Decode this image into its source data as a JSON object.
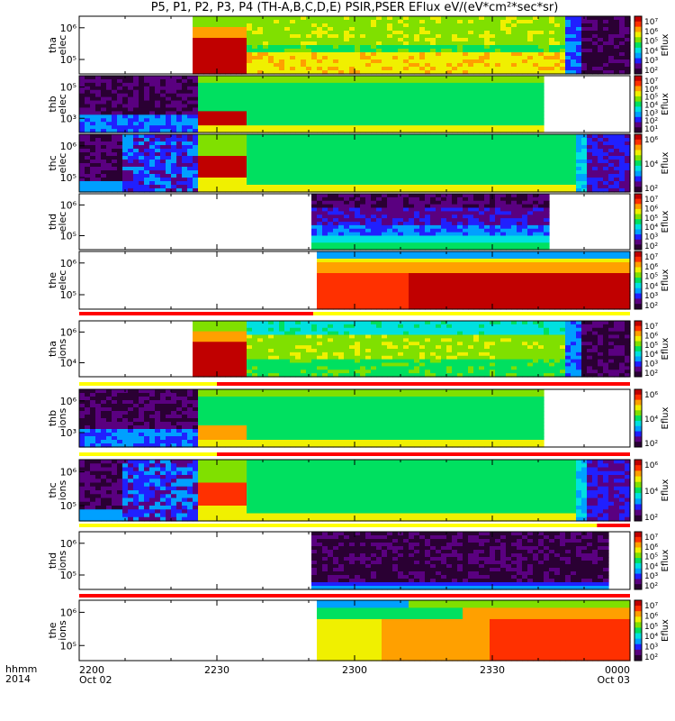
{
  "title": "P5, P1, P2, P3, P4 (TH-A,B,C,D,E) PSIR,PSER EFlux eV/(eV*cm²*sec*sr)",
  "time_axis": {
    "row_label": "hhmm",
    "year": "2014",
    "ticks": [
      {
        "label": "2200",
        "sublabel": "Oct 02"
      },
      {
        "label": "2230",
        "sublabel": ""
      },
      {
        "label": "2300",
        "sublabel": ""
      },
      {
        "label": "2330",
        "sublabel": ""
      },
      {
        "label": "0000",
        "sublabel": "Oct 03"
      }
    ]
  },
  "colors": {
    "colormap": [
      "#2a0033",
      "#5a0080",
      "#2020ff",
      "#00a0ff",
      "#00e0e0",
      "#00e060",
      "#80e000",
      "#f0f000",
      "#ffa000",
      "#ff3000",
      "#c00000"
    ],
    "flag_red": "#ff0000",
    "flag_yellow": "#ffff00"
  },
  "chart_data": [
    {
      "type": "heatmap",
      "panel": "tha elec",
      "ylabel": "tha\nelec",
      "yticks": [
        "10⁶",
        "10⁵"
      ],
      "colorbar": {
        "label": "Eflux",
        "ticks": [
          "10⁷",
          "10⁶",
          "10⁵",
          "10⁴",
          "10³",
          "10²"
        ]
      },
      "x_range": [
        "2200",
        "0000"
      ],
      "data_segments": [
        [
          "2225",
          "2237",
          "high"
        ],
        [
          "2237",
          "2346",
          "medium"
        ],
        [
          "2346",
          "0000",
          "low"
        ]
      ]
    },
    {
      "type": "heatmap",
      "panel": "thb elec",
      "ylabel": "thb\nelec",
      "yticks": [
        "10⁵",
        "10³"
      ],
      "colorbar": {
        "label": "Eflux",
        "ticks": [
          "10⁷",
          "10⁶",
          "10⁵",
          "10⁴",
          "10³",
          "10²",
          "10¹"
        ]
      },
      "x_range": [
        "2200",
        "0000"
      ],
      "data_segments": [
        [
          "2200",
          "2226",
          "low"
        ],
        [
          "2226",
          "2341",
          "medium"
        ]
      ]
    },
    {
      "type": "heatmap",
      "panel": "thc elec",
      "ylabel": "thc\nelec",
      "yticks": [
        "10⁶",
        "10⁵"
      ],
      "colorbar": {
        "label": "Eflux",
        "ticks": [
          "10⁶",
          "10⁴",
          "10²"
        ]
      },
      "x_range": [
        "2200",
        "0000"
      ],
      "data_segments": [
        [
          "2200",
          "2226",
          "low"
        ],
        [
          "2226",
          "2237",
          "high"
        ],
        [
          "2237",
          "2348",
          "medium"
        ],
        [
          "2348",
          "0000",
          "low"
        ]
      ]
    },
    {
      "type": "heatmap",
      "panel": "thd elec",
      "ylabel": "thd\nelec",
      "yticks": [
        "10⁶",
        "10⁵"
      ],
      "colorbar": {
        "label": "Eflux",
        "ticks": [
          "10⁷",
          "10⁶",
          "10⁵",
          "10⁴",
          "10³",
          "10²"
        ]
      },
      "x_range": [
        "2200",
        "0000"
      ],
      "data_segments": [
        [
          "2251",
          "2342",
          "low"
        ]
      ]
    },
    {
      "type": "heatmap",
      "panel": "the elec",
      "ylabel": "the\nelec",
      "yticks": [
        "10⁶",
        "10⁵"
      ],
      "colorbar": {
        "label": "Eflux",
        "ticks": [
          "10⁷",
          "10⁶",
          "10⁵",
          "10⁴",
          "10³",
          "10²"
        ]
      },
      "x_range": [
        "2200",
        "0000"
      ],
      "data_segments": [
        [
          "2252",
          "0000",
          "high"
        ]
      ]
    },
    {
      "type": "heatmap",
      "panel": "tha ions",
      "ylabel": "tha\nions",
      "yticks": [
        "10⁶",
        "10⁴"
      ],
      "colorbar": {
        "label": "Eflux",
        "ticks": [
          "10⁷",
          "10⁶",
          "10⁵",
          "10⁴",
          "10³",
          "10²"
        ]
      },
      "x_range": [
        "2200",
        "0000"
      ],
      "data_segments": [
        [
          "2225",
          "2237",
          "high"
        ],
        [
          "2237",
          "2350",
          "medium"
        ],
        [
          "2350",
          "0000",
          "low"
        ]
      ]
    },
    {
      "type": "heatmap",
      "panel": "thb ions",
      "ylabel": "thb\nions",
      "yticks": [
        "10⁶",
        "10³"
      ],
      "colorbar": {
        "label": "Eflux",
        "ticks": [
          "10⁶",
          "10⁴",
          "10²"
        ]
      },
      "x_range": [
        "2200",
        "0000"
      ],
      "data_segments": [
        [
          "2200",
          "2226",
          "low"
        ],
        [
          "2226",
          "2341",
          "medium"
        ]
      ]
    },
    {
      "type": "heatmap",
      "panel": "thc ions",
      "ylabel": "thc\nions",
      "yticks": [
        "10⁶",
        "10⁵"
      ],
      "colorbar": {
        "label": "Eflux",
        "ticks": [
          "10⁶",
          "10⁴",
          "10²"
        ]
      },
      "x_range": [
        "2200",
        "0000"
      ],
      "data_segments": [
        [
          "2200",
          "2226",
          "low"
        ],
        [
          "2226",
          "2237",
          "high"
        ],
        [
          "2237",
          "2348",
          "medium"
        ],
        [
          "2348",
          "0000",
          "low"
        ]
      ]
    },
    {
      "type": "heatmap",
      "panel": "thd ions",
      "ylabel": "thd\nions",
      "yticks": [
        "10⁶",
        "10⁵"
      ],
      "colorbar": {
        "label": "Eflux",
        "ticks": [
          "10⁷",
          "10⁶",
          "10⁵",
          "10⁴",
          "10³",
          "10²"
        ]
      },
      "x_range": [
        "2200",
        "0000"
      ],
      "data_segments": [
        [
          "2251",
          "2355",
          "low"
        ]
      ]
    },
    {
      "type": "heatmap",
      "panel": "the ions",
      "ylabel": "the\nions",
      "yticks": [
        "10⁶",
        "10⁵"
      ],
      "colorbar": {
        "label": "Eflux",
        "ticks": [
          "10⁷",
          "10⁶",
          "10⁵",
          "10⁴",
          "10³",
          "10²"
        ]
      },
      "x_range": [
        "2200",
        "0000"
      ],
      "data_segments": [
        [
          "2252",
          "0000",
          "high"
        ]
      ]
    }
  ]
}
